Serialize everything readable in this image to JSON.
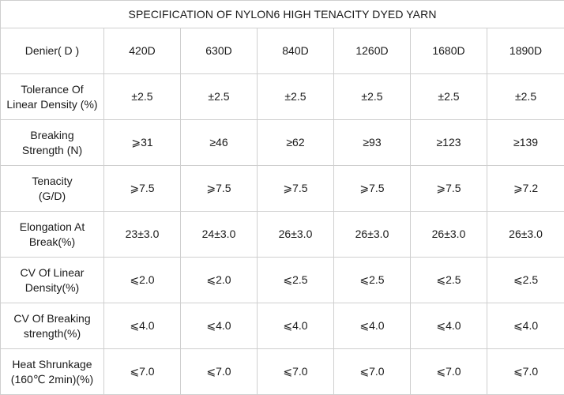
{
  "title": "SPECIFICATION OF NYLON6 HIGH TENACITY DYED YARN",
  "header": {
    "label": "Denier( D )",
    "values": [
      "420D",
      "630D",
      "840D",
      "1260D",
      "1680D",
      "1890D"
    ]
  },
  "rows": [
    {
      "label_lines": [
        "Tolerance Of",
        "Linear Density (%)"
      ],
      "values": [
        "±2.5",
        "±2.5",
        "±2.5",
        "±2.5",
        "±2.5",
        "±2.5"
      ]
    },
    {
      "label_lines": [
        "Breaking",
        "Strength (N)"
      ],
      "values": [
        "⩾31",
        "≥46",
        "≥62",
        "≥93",
        "≥123",
        "≥139"
      ]
    },
    {
      "label_lines": [
        "Tenacity",
        "(G/D)"
      ],
      "values": [
        "⩾7.5",
        "⩾7.5",
        "⩾7.5",
        "⩾7.5",
        "⩾7.5",
        "⩾7.2"
      ]
    },
    {
      "label_lines": [
        "Elongation At",
        "Break(%)"
      ],
      "values": [
        "23±3.0",
        "24±3.0",
        "26±3.0",
        "26±3.0",
        "26±3.0",
        "26±3.0"
      ]
    },
    {
      "label_lines": [
        "CV Of Linear",
        "Density(%)"
      ],
      "values": [
        "⩽2.0",
        "⩽2.0",
        "⩽2.5",
        "⩽2.5",
        "⩽2.5",
        "⩽2.5"
      ]
    },
    {
      "label_lines": [
        "CV Of Breaking",
        "strength(%)"
      ],
      "values": [
        "⩽4.0",
        "⩽4.0",
        "⩽4.0",
        "⩽4.0",
        "⩽4.0",
        "⩽4.0"
      ]
    },
    {
      "label_lines": [
        "Heat Shrunkage",
        "(160℃ 2min)(%)"
      ],
      "values": [
        "⩽7.0",
        "⩽7.0",
        "⩽7.0",
        "⩽7.0",
        "⩽7.0",
        "⩽7.0"
      ]
    }
  ]
}
